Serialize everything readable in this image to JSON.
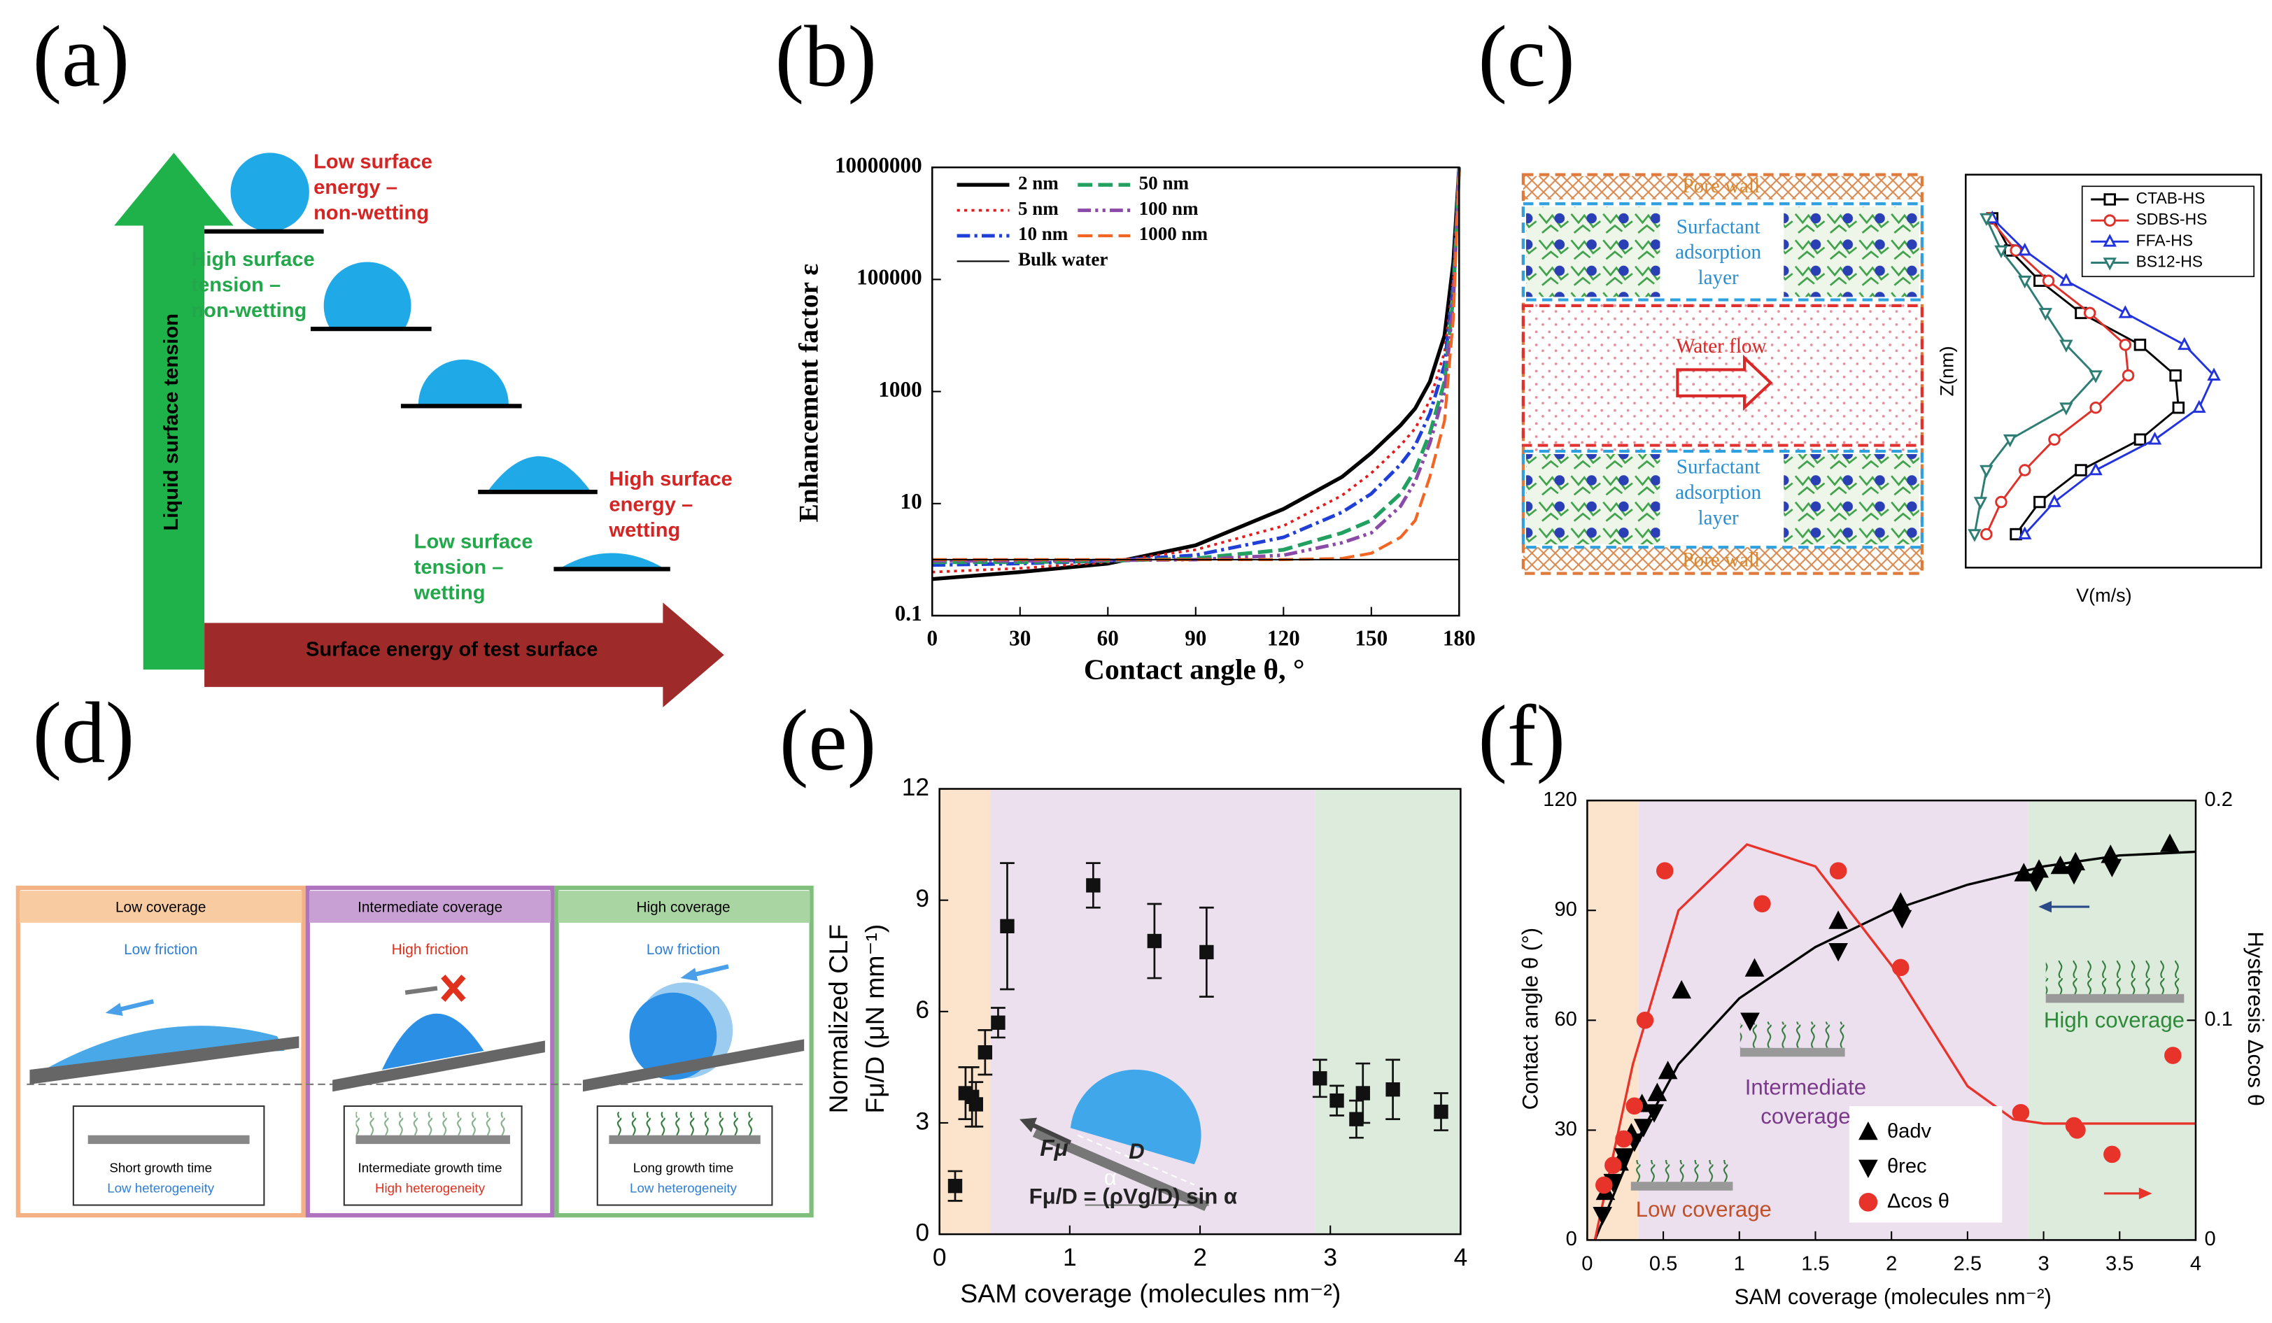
{
  "panel_labels": [
    "(a)",
    "(b)",
    "(c)",
    "(d)",
    "(e)",
    "(f)"
  ],
  "diagram_a": {
    "axis_y": "Liquid surface tension",
    "axis_x": "Surface energy of test surface",
    "labels": [
      {
        "lines": [
          "Low surface",
          "energy –",
          "non-wetting"
        ],
        "color": "#d42424"
      },
      {
        "lines": [
          "High surface",
          "tension –",
          "non-wetting"
        ],
        "color": "#22a84a"
      },
      {
        "lines": [
          "High surface",
          "energy –",
          "wetting"
        ],
        "color": "#d42424"
      },
      {
        "lines": [
          "Low surface",
          "tension –",
          "wetting"
        ],
        "color": "#22a84a"
      }
    ]
  },
  "diagram_c": {
    "pore_wall_top": "Pore wall",
    "layer_top": [
      "Surfactant",
      "adsorption",
      "layer"
    ],
    "flow": "Water flow",
    "layer_bottom": [
      "Surfactant",
      "adsorption",
      "layer"
    ],
    "pore_wall_bottom": "Pore wall"
  },
  "diagram_d": {
    "panels": [
      {
        "title": "Low coverage",
        "friction": "Low friction",
        "friction_color": "#2f7fd6",
        "growth": "Short growth time",
        "heterogeneity": "Low heterogeneity",
        "heterogeneity_color": "#2f7fd6"
      },
      {
        "title": "Intermediate coverage",
        "friction": "High friction",
        "friction_color": "#e0301e",
        "growth": "Intermediate growth time",
        "heterogeneity": "High heterogeneity",
        "heterogeneity_color": "#e0301e"
      },
      {
        "title": "High coverage",
        "friction": "Low friction",
        "friction_color": "#2f7fd6",
        "growth": "Long growth time",
        "heterogeneity": "Low heterogeneity",
        "heterogeneity_color": "#2f7fd6"
      }
    ]
  },
  "chart_data": [
    {
      "type": "line",
      "log_y": true,
      "x_label": "Contact angle θ, °",
      "y_label": "Enhancement factor ε",
      "x": [
        0,
        30,
        60,
        90,
        120,
        140,
        150,
        160,
        165,
        170,
        175,
        178,
        180
      ],
      "xlim": [
        0,
        180
      ],
      "xticks": [
        0,
        30,
        60,
        90,
        120,
        150,
        180
      ],
      "ylim": [
        0.1,
        10000000
      ],
      "yticks": [
        0.1,
        10,
        1000,
        100000,
        10000000
      ],
      "series": [
        {
          "name": "2 nm",
          "color": "#000000",
          "style": "solid",
          "width": 2.6,
          "values": [
            0.45,
            0.6,
            0.85,
            1.8,
            8,
            30,
            80,
            250,
            500,
            1500,
            10000,
            200000,
            10000000
          ]
        },
        {
          "name": "5 nm",
          "color": "#e41a1c",
          "style": "dotted",
          "width": 1.8,
          "values": [
            0.6,
            0.7,
            0.9,
            1.5,
            4,
            14,
            35,
            110,
            220,
            700,
            5000,
            100000,
            10000000
          ]
        },
        {
          "name": "10 nm",
          "color": "#1f3fd6",
          "style": "dashdot",
          "width": 2.4,
          "values": [
            0.8,
            0.85,
            0.95,
            1.2,
            2.5,
            7,
            15,
            50,
            110,
            400,
            3000,
            80000,
            10000000
          ]
        },
        {
          "name": "50 nm",
          "color": "#21a060",
          "style": "dashed",
          "width": 2.6,
          "values": [
            0.9,
            0.9,
            0.95,
            1.05,
            1.5,
            3,
            5,
            15,
            40,
            180,
            1500,
            50000,
            10000000
          ]
        },
        {
          "name": "100 nm",
          "color": "#8b4aa8",
          "style": "dashdotdot",
          "width": 2.4,
          "values": [
            0.95,
            0.95,
            0.97,
            1,
            1.2,
            2,
            3,
            9,
            25,
            120,
            1000,
            40000,
            10000000
          ]
        },
        {
          "name": "1000 nm",
          "color": "#f26522",
          "style": "dashed",
          "width": 2,
          "values": [
            1,
            1,
            1,
            1,
            1,
            1.05,
            1.3,
            2.5,
            5,
            30,
            300,
            20000,
            10000000
          ]
        },
        {
          "name": "Bulk water",
          "color": "#000000",
          "style": "solid",
          "width": 1,
          "values": [
            1,
            1,
            1,
            1,
            1,
            1,
            1,
            1,
            1,
            1,
            1,
            1,
            1
          ]
        }
      ]
    },
    {
      "type": "line",
      "x_label": "V(m/s)",
      "y_label": "Z(nm)",
      "xlim": [
        0,
        1
      ],
      "ylim": [
        0,
        1
      ],
      "series": [
        {
          "name": "CTAB-HS",
          "color": "#000000",
          "marker": "square",
          "filled": false,
          "x": [
            0.09,
            0.15,
            0.25,
            0.39,
            0.59,
            0.71,
            0.72,
            0.59,
            0.39,
            0.25,
            0.17
          ],
          "values": [
            0.889,
            0.807,
            0.73,
            0.648,
            0.567,
            0.489,
            0.407,
            0.326,
            0.248,
            0.167,
            0.085
          ]
        },
        {
          "name": "SDBS-HS",
          "color": "#e0302a",
          "marker": "circle",
          "filled": false,
          "x": [
            0.08,
            0.17,
            0.28,
            0.42,
            0.54,
            0.55,
            0.44,
            0.3,
            0.2,
            0.12,
            0.07
          ],
          "values": [
            0.889,
            0.807,
            0.73,
            0.648,
            0.567,
            0.489,
            0.407,
            0.326,
            0.248,
            0.167,
            0.085
          ]
        },
        {
          "name": "FFA-HS",
          "color": "#2233dd",
          "marker": "triangle-up",
          "filled": false,
          "x": [
            0.09,
            0.2,
            0.34,
            0.54,
            0.74,
            0.84,
            0.79,
            0.64,
            0.44,
            0.3,
            0.2
          ],
          "values": [
            0.889,
            0.807,
            0.73,
            0.648,
            0.567,
            0.489,
            0.407,
            0.326,
            0.248,
            0.167,
            0.085
          ]
        },
        {
          "name": "BS12-HS",
          "color": "#2e7d74",
          "marker": "triangle-down",
          "filled": false,
          "x": [
            0.07,
            0.12,
            0.2,
            0.27,
            0.34,
            0.44,
            0.34,
            0.15,
            0.07,
            0.05,
            0.03
          ],
          "values": [
            0.889,
            0.807,
            0.73,
            0.648,
            0.567,
            0.489,
            0.407,
            0.326,
            0.248,
            0.167,
            0.085
          ]
        }
      ]
    },
    {
      "type": "scatter",
      "color": "#111111",
      "x_label": "SAM coverage (molecules nm⁻²)",
      "y_label": [
        "Normalized CLF",
        "Fμ/D (μN mm⁻¹)"
      ],
      "annotations": [
        "Fμ",
        "D",
        "α",
        "Fμ/D = (ρVg/D) sin α"
      ],
      "x": [
        0.12,
        0.2,
        0.25,
        0.28,
        0.35,
        0.45,
        0.52,
        1.18,
        1.65,
        2.05,
        2.92,
        3.05,
        3.2,
        3.25,
        3.48,
        3.85
      ],
      "values": [
        1.3,
        3.8,
        3.7,
        3.5,
        4.9,
        5.7,
        8.3,
        9.4,
        7.9,
        7.6,
        4.2,
        3.6,
        3.1,
        3.8,
        3.9,
        3.3
      ],
      "errors": [
        0.4,
        0.7,
        0.8,
        0.6,
        0.6,
        0.4,
        1.7,
        0.6,
        1.0,
        1.2,
        0.5,
        0.4,
        0.5,
        0.8,
        0.8,
        0.5
      ],
      "xlim": [
        0,
        4
      ],
      "xticks": [
        0,
        1,
        2,
        3,
        4
      ],
      "ylim": [
        0,
        12
      ],
      "yticks": [
        0,
        3,
        6,
        9,
        12
      ]
    },
    {
      "type": "scatter",
      "x_label": "SAM coverage (molecules nm⁻²)",
      "y_label": "Contact angle θ (°)",
      "y2_label": "Hysteresis Δcos θ",
      "annotations": [
        [
          "Low coverage"
        ],
        [
          "Intermediate",
          "coverage"
        ],
        [
          "High coverage"
        ]
      ],
      "xlim": [
        0,
        4
      ],
      "xticks": [
        0,
        0.5,
        1,
        1.5,
        2,
        2.5,
        3,
        3.5,
        4
      ],
      "ylim": [
        0,
        120
      ],
      "yticks": [
        0,
        30,
        60,
        90,
        120
      ],
      "y2lim": [
        0,
        0.2
      ],
      "y2ticks": [
        0,
        0.1,
        0.2
      ],
      "series": [
        {
          "name": "θadv",
          "color": "#000000",
          "marker": "triangle-up",
          "filled": true,
          "x": [
            0.12,
            0.21,
            0.29,
            0.36,
            0.46,
            0.53,
            0.62,
            1.1,
            1.65,
            2.06,
            2.87,
            2.97,
            3.11,
            3.21,
            3.44,
            3.83
          ],
          "values": [
            13,
            21,
            29,
            37,
            40,
            46,
            68,
            74,
            87,
            92,
            100,
            101,
            102,
            103,
            105,
            108
          ]
        },
        {
          "name": "θrec",
          "color": "#000000",
          "marker": "triangle-down",
          "filled": true,
          "x": [
            0.1,
            0.17,
            0.24,
            0.31,
            0.37,
            0.44,
            1.07,
            1.65,
            2.07,
            2.95,
            3.2,
            3.45
          ],
          "values": [
            7,
            16,
            23,
            27,
            31,
            35,
            60,
            79,
            88,
            98,
            100,
            102
          ]
        },
        {
          "name": "Δcos θ",
          "color": "#e8332a",
          "marker": "circle",
          "filled": true,
          "axis": "y2",
          "x": [
            0.11,
            0.17,
            0.24,
            0.31,
            0.38,
            0.51,
            1.15,
            1.65,
            2.06,
            2.85,
            3.2,
            3.22,
            3.45,
            3.85
          ],
          "values": [
            0.025,
            0.034,
            0.046,
            0.061,
            0.1,
            0.168,
            0.153,
            0.168,
            0.124,
            0.058,
            0.052,
            0.05,
            0.039,
            0.084
          ]
        }
      ],
      "curves": [
        {
          "color": "#000000",
          "x": [
            0.05,
            0.3,
            0.6,
            1,
            1.5,
            2,
            2.5,
            3,
            3.5,
            4
          ],
          "values": [
            0,
            25,
            48,
            66,
            80,
            90,
            97,
            102,
            105,
            106
          ]
        },
        {
          "color": "#e8332a",
          "axis": "y2",
          "x": [
            0.05,
            0.3,
            0.6,
            1.05,
            1.5,
            2,
            2.5,
            2.8,
            3,
            3.5,
            4
          ],
          "values": [
            0,
            0.08,
            0.15,
            0.18,
            0.17,
            0.125,
            0.07,
            0.055,
            0.053,
            0.053,
            0.053
          ]
        }
      ]
    }
  ]
}
